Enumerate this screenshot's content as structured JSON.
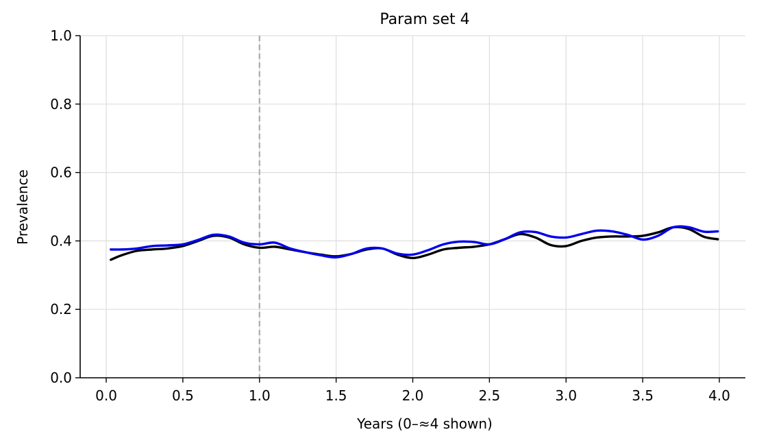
{
  "chart_data": {
    "type": "line",
    "title": "Param set 4",
    "xlabel": "Years (0–≈4 shown)",
    "ylabel": "Prevalence",
    "xlim": [
      -0.17,
      4.17
    ],
    "ylim": [
      0.0,
      1.0
    ],
    "xticks": [
      0.0,
      0.5,
      1.0,
      1.5,
      2.0,
      2.5,
      3.0,
      3.5,
      4.0
    ],
    "xtick_labels": [
      "0.0",
      "0.5",
      "1.0",
      "1.5",
      "2.0",
      "2.5",
      "3.0",
      "3.5",
      "4.0"
    ],
    "yticks": [
      0.0,
      0.2,
      0.4,
      0.6,
      0.8,
      1.0
    ],
    "ytick_labels": [
      "0.0",
      "0.2",
      "0.4",
      "0.6",
      "0.8",
      "1.0"
    ],
    "grid": true,
    "vline": {
      "x": 1.0,
      "style": "dashed",
      "color": "#aaaaaa"
    },
    "series": [
      {
        "color": "#000000",
        "x": [
          0.03,
          0.1,
          0.2,
          0.3,
          0.4,
          0.5,
          0.6,
          0.7,
          0.8,
          0.9,
          1.0,
          1.1,
          1.2,
          1.3,
          1.4,
          1.5,
          1.6,
          1.7,
          1.8,
          1.9,
          2.0,
          2.1,
          2.2,
          2.3,
          2.4,
          2.5,
          2.6,
          2.7,
          2.8,
          2.9,
          3.0,
          3.1,
          3.2,
          3.3,
          3.4,
          3.5,
          3.6,
          3.7,
          3.8,
          3.9,
          3.99
        ],
        "y": [
          0.345,
          0.358,
          0.371,
          0.375,
          0.378,
          0.385,
          0.4,
          0.415,
          0.41,
          0.39,
          0.38,
          0.383,
          0.375,
          0.367,
          0.36,
          0.355,
          0.362,
          0.375,
          0.378,
          0.36,
          0.35,
          0.36,
          0.375,
          0.38,
          0.383,
          0.39,
          0.405,
          0.42,
          0.41,
          0.388,
          0.385,
          0.4,
          0.41,
          0.413,
          0.413,
          0.415,
          0.425,
          0.44,
          0.435,
          0.412,
          0.405
        ]
      },
      {
        "color": "#0000ee",
        "x": [
          0.03,
          0.1,
          0.2,
          0.3,
          0.4,
          0.5,
          0.6,
          0.7,
          0.8,
          0.9,
          1.0,
          1.1,
          1.2,
          1.3,
          1.4,
          1.5,
          1.6,
          1.7,
          1.8,
          1.9,
          2.0,
          2.1,
          2.2,
          2.3,
          2.4,
          2.5,
          2.6,
          2.7,
          2.8,
          2.9,
          3.0,
          3.1,
          3.2,
          3.3,
          3.4,
          3.5,
          3.6,
          3.7,
          3.8,
          3.9,
          3.99
        ],
        "y": [
          0.375,
          0.375,
          0.378,
          0.385,
          0.387,
          0.39,
          0.403,
          0.418,
          0.413,
          0.395,
          0.39,
          0.395,
          0.378,
          0.367,
          0.358,
          0.352,
          0.362,
          0.378,
          0.378,
          0.363,
          0.36,
          0.373,
          0.39,
          0.398,
          0.397,
          0.39,
          0.405,
          0.425,
          0.426,
          0.413,
          0.41,
          0.42,
          0.43,
          0.428,
          0.418,
          0.404,
          0.415,
          0.44,
          0.44,
          0.427,
          0.428
        ]
      }
    ]
  }
}
